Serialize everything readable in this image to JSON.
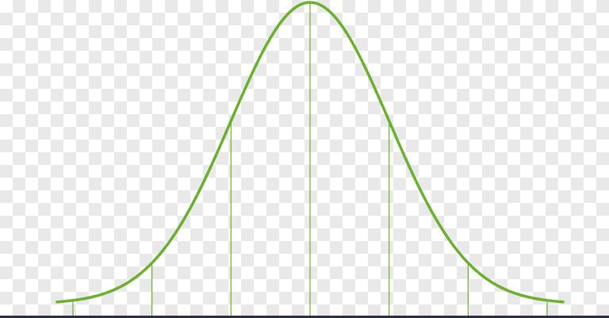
{
  "chart_data": {
    "type": "line",
    "title": "",
    "xlabel": "",
    "ylabel": "",
    "distribution": "normal",
    "mean": 0,
    "std_dev": 1,
    "xlim": [
      -3.2,
      3.2
    ],
    "ylim": [
      0,
      0.4
    ],
    "reference_lines_x": [
      -3,
      -2,
      -1,
      0,
      1,
      2,
      3
    ],
    "grid": false,
    "legend": "none",
    "line_color": "#6aaf2e",
    "background": "transparency-checkerboard"
  }
}
